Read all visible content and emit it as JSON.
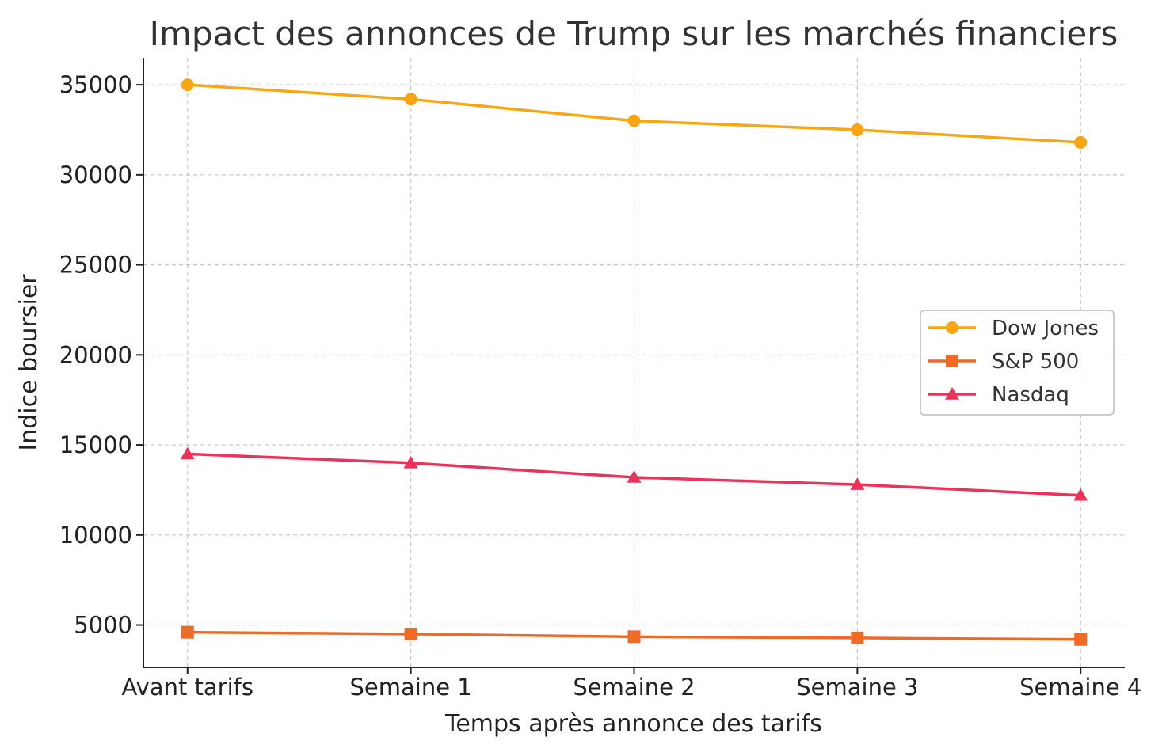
{
  "chart_data": {
    "type": "line",
    "title": "Impact des annonces de Trump sur les marchés financiers",
    "xlabel": "Temps après annonce des tarifs",
    "ylabel": "Indice boursier",
    "categories": [
      "Avant tarifs",
      "Semaine 1",
      "Semaine 2",
      "Semaine 3",
      "Semaine 4"
    ],
    "y_ticks": [
      5000,
      10000,
      15000,
      20000,
      25000,
      30000,
      35000
    ],
    "ylim": [
      2650,
      36500
    ],
    "grid": true,
    "legend_position": "center-right",
    "series": [
      {
        "name": "Dow Jones",
        "marker": "circle",
        "color": "#FAA613",
        "values": [
          35000,
          34200,
          33000,
          32500,
          31800
        ]
      },
      {
        "name": "S&P 500",
        "marker": "square",
        "color": "#F06A26",
        "values": [
          4600,
          4500,
          4350,
          4280,
          4200
        ]
      },
      {
        "name": "Nasdaq",
        "marker": "triangle",
        "color": "#EE3158",
        "values": [
          14500,
          14000,
          13200,
          12800,
          12200
        ]
      }
    ]
  }
}
